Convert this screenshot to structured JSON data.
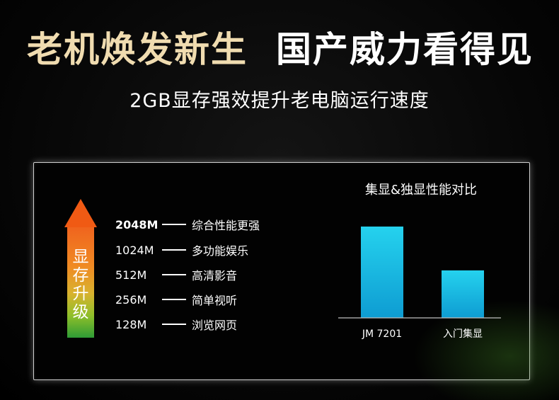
{
  "headline": {
    "part1": "老机焕发新生",
    "part2": "国产威力看得见"
  },
  "subtitle": "2GB显存强效提升老电脑运行速度",
  "arrow_label": "显存升级",
  "levels": [
    {
      "size": "2048M",
      "label": "综合性能更强"
    },
    {
      "size": "1024M",
      "label": "多功能娱乐"
    },
    {
      "size": "512M",
      "label": "高清影音"
    },
    {
      "size": "256M",
      "label": "简单视听"
    },
    {
      "size": "128M",
      "label": "浏览网页"
    }
  ],
  "colors": {
    "headline_gold": "#f0dcb0",
    "arrow_top": "#f05a14",
    "arrow_bottom": "#2e9c35",
    "bar_top": "#25d2ee",
    "bar_bottom": "#0e9cd2"
  },
  "chart_data": {
    "type": "bar",
    "title": "集显&独显性能对比",
    "categories": [
      "JM 7201",
      "入门集显"
    ],
    "values": [
      100,
      52
    ],
    "ylim": [
      0,
      100
    ],
    "grid": false,
    "xlabel": "",
    "ylabel": ""
  }
}
